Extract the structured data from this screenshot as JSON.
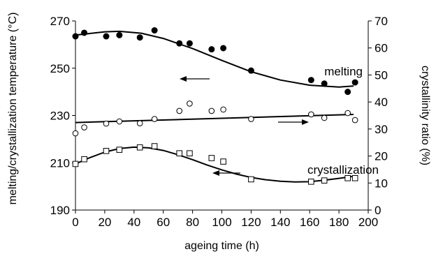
{
  "chart_data": {
    "type": "scatter",
    "title": "",
    "xlabel": "ageing time (h)",
    "ylabel": "melting/crystallization temperature (°C)",
    "y2label": "crystallinity ratio (%)",
    "xlim": [
      0,
      200
    ],
    "ylim": [
      190,
      270
    ],
    "y2lim": [
      0,
      70
    ],
    "xticks": [
      "0",
      "20",
      "40",
      "60",
      "80",
      "100",
      "120",
      "140",
      "160",
      "180",
      "200"
    ],
    "yticks": [
      "190",
      "210",
      "230",
      "250",
      "270"
    ],
    "y2ticks": [
      "0",
      "10",
      "20",
      "30",
      "40",
      "50",
      "60",
      "70"
    ],
    "grid": false,
    "series": [
      {
        "name": "melting",
        "axis": "left",
        "marker": "filled-circle",
        "x": [
          0,
          6,
          21,
          30,
          44,
          54,
          71,
          78,
          93,
          101,
          120,
          161,
          170,
          186,
          191
        ],
        "y": [
          263.5,
          265,
          263.5,
          264,
          263,
          266,
          260.5,
          260.5,
          258,
          258.5,
          249,
          245,
          243.5,
          240,
          244
        ],
        "fit": [
          [
            0,
            264
          ],
          [
            20,
            265.4
          ],
          [
            30,
            265.6
          ],
          [
            45,
            264.8
          ],
          [
            60,
            262.6
          ],
          [
            80,
            258.3
          ],
          [
            100,
            253.3
          ],
          [
            120,
            248.5
          ],
          [
            140,
            245
          ],
          [
            160,
            242.8
          ],
          [
            180,
            242
          ],
          [
            190,
            242.5
          ]
        ]
      },
      {
        "name": "crystallinity",
        "axis": "right",
        "marker": "open-circle",
        "x": [
          0,
          6,
          21,
          30,
          44,
          54,
          71,
          78,
          93,
          101,
          120,
          161,
          170,
          186,
          191
        ],
        "y": [
          28.4,
          30.6,
          32,
          32.8,
          32.1,
          33.7,
          36.7,
          39.4,
          36.7,
          37.2,
          33.7,
          35.4,
          34.1,
          35.9,
          33.3
        ],
        "fit": [
          [
            0,
            32.4
          ],
          [
            190,
            35.4
          ]
        ]
      },
      {
        "name": "crystallization",
        "axis": "left",
        "marker": "open-square",
        "x": [
          0,
          6,
          21,
          30,
          44,
          54,
          71,
          78,
          93,
          101,
          120,
          161,
          170,
          186,
          191
        ],
        "y": [
          209.5,
          211.5,
          215,
          215.5,
          216.5,
          217,
          214,
          214,
          212,
          210.5,
          203,
          202,
          202.5,
          203.5,
          203.5
        ],
        "fit": [
          [
            0,
            209.5
          ],
          [
            10,
            212.2
          ],
          [
            20,
            214.5
          ],
          [
            30,
            216
          ],
          [
            40,
            216.6
          ],
          [
            50,
            216.3
          ],
          [
            60,
            215.2
          ],
          [
            70,
            213.4
          ],
          [
            80,
            211.3
          ],
          [
            90,
            209
          ],
          [
            100,
            207
          ],
          [
            110,
            205.2
          ],
          [
            120,
            203.8
          ],
          [
            130,
            202.8
          ],
          [
            140,
            202.2
          ],
          [
            150,
            201.9
          ],
          [
            160,
            202
          ],
          [
            170,
            202.6
          ],
          [
            180,
            203.4
          ],
          [
            190,
            204.3
          ]
        ]
      }
    ],
    "annotations": [
      {
        "text": "melting",
        "arrow": "left"
      },
      {
        "text": "",
        "arrow": "right"
      },
      {
        "text": "crystallization",
        "arrow": "left"
      }
    ]
  }
}
